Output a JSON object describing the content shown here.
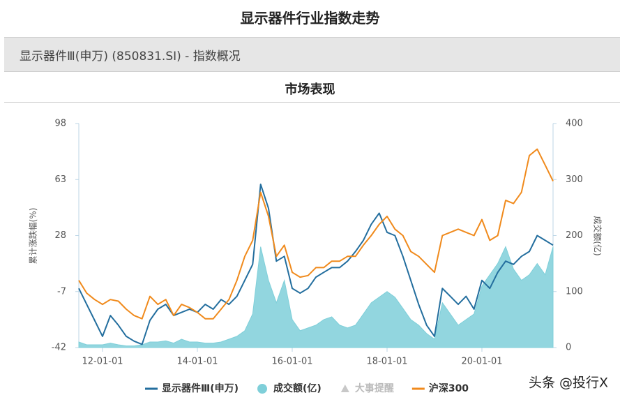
{
  "chart_data": {
    "type": "line",
    "title": "显示器件行业指数走势",
    "header": "显示器件Ⅲ(申万) (850831.SI) - 指数概况",
    "subtitle": "市场表现",
    "y_label": "累计涨跌幅(%)",
    "y2_label": "成交额(亿)",
    "watermark": "头条 @投行X",
    "x": [
      "11-07-01",
      "11-09-01",
      "11-11-01",
      "12-01-01",
      "12-03-01",
      "12-05-01",
      "12-07-01",
      "12-09-01",
      "12-11-01",
      "13-01-01",
      "13-03-01",
      "13-05-01",
      "13-07-01",
      "13-09-01",
      "13-11-01",
      "14-01-01",
      "14-03-01",
      "14-05-01",
      "14-07-01",
      "14-09-01",
      "14-11-01",
      "15-01-01",
      "15-03-01",
      "15-05-01",
      "15-07-01",
      "15-09-01",
      "15-11-01",
      "16-01-01",
      "16-03-01",
      "16-05-01",
      "16-07-01",
      "16-09-01",
      "16-11-01",
      "17-01-01",
      "17-03-01",
      "17-05-01",
      "17-07-01",
      "17-09-01",
      "17-11-01",
      "18-01-01",
      "18-03-01",
      "18-05-01",
      "18-07-01",
      "18-09-01",
      "18-11-01",
      "19-01-01",
      "19-03-01",
      "19-05-01",
      "19-07-01",
      "19-09-01",
      "19-11-01",
      "20-01-01",
      "20-03-01",
      "20-05-01",
      "20-07-01",
      "20-09-01",
      "20-11-01",
      "21-01-01",
      "21-03-01",
      "21-05-01",
      "21-07-01"
    ],
    "xlim": [
      "11-07-01",
      "21-07-01"
    ],
    "xticks": [
      "12-01-01",
      "14-01-01",
      "16-01-01",
      "18-01-01",
      "20-01-01"
    ],
    "ylim": [
      -42,
      98
    ],
    "yticks": [
      -42,
      -7,
      28,
      63,
      98
    ],
    "y2lim": [
      0,
      400
    ],
    "y2ticks": [
      0,
      100,
      200,
      300,
      400
    ],
    "grid": false,
    "series": [
      {
        "name": "显示器件Ⅲ(申万)",
        "kind": "line",
        "color": "#236e9e",
        "values": [
          -5,
          -15,
          -25,
          -35,
          -22,
          -28,
          -35,
          -38,
          -40,
          -25,
          -18,
          -15,
          -22,
          -20,
          -18,
          -20,
          -15,
          -18,
          -12,
          -15,
          -10,
          0,
          10,
          60,
          45,
          12,
          15,
          -5,
          -8,
          -5,
          2,
          5,
          8,
          8,
          12,
          18,
          25,
          35,
          42,
          30,
          28,
          15,
          0,
          -15,
          -28,
          -35,
          -5,
          -10,
          -15,
          -10,
          -18,
          0,
          -5,
          5,
          12,
          10,
          15,
          18,
          28,
          25,
          22
        ]
      },
      {
        "name": "成交额(亿)",
        "kind": "area",
        "axis": "y2",
        "color": "#7fcfd9",
        "values": [
          10,
          5,
          5,
          5,
          8,
          5,
          3,
          3,
          5,
          10,
          10,
          12,
          8,
          15,
          10,
          10,
          8,
          8,
          10,
          15,
          20,
          30,
          60,
          180,
          120,
          80,
          120,
          50,
          30,
          35,
          40,
          50,
          55,
          40,
          35,
          40,
          60,
          80,
          90,
          100,
          90,
          70,
          50,
          40,
          25,
          15,
          80,
          60,
          40,
          50,
          60,
          110,
          130,
          150,
          180,
          140,
          120,
          130,
          150,
          130,
          180
        ]
      },
      {
        "name": "沪深300",
        "kind": "line",
        "color": "#f08a1c",
        "values": [
          0,
          -8,
          -12,
          -15,
          -12,
          -13,
          -18,
          -22,
          -24,
          -10,
          -15,
          -12,
          -22,
          -15,
          -17,
          -20,
          -24,
          -24,
          -18,
          -12,
          0,
          15,
          25,
          55,
          40,
          15,
          22,
          5,
          2,
          3,
          8,
          8,
          12,
          12,
          15,
          15,
          22,
          28,
          35,
          40,
          32,
          28,
          18,
          15,
          10,
          5,
          28,
          30,
          32,
          30,
          28,
          38,
          25,
          28,
          50,
          48,
          55,
          78,
          82,
          72,
          62
        ]
      }
    ],
    "events": {
      "name": "大事提醒",
      "color": "#c8c8c8"
    }
  }
}
